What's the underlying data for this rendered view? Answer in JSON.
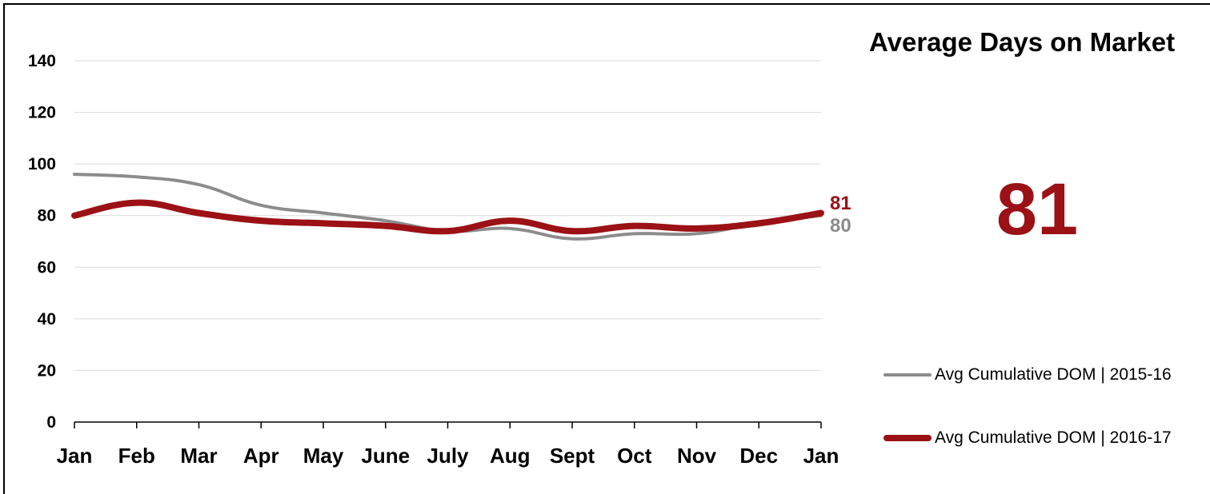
{
  "title": "Average Days on Market",
  "big_number": "81",
  "colors": {
    "series_2015_16": "#8c8c8c",
    "series_2016_17": "#9b1115",
    "grid": "#d9d9d9",
    "axis": "#000000"
  },
  "legend": [
    {
      "label": "Avg Cumulative DOM | 2015-16",
      "color": "#8c8c8c"
    },
    {
      "label": "Avg Cumulative DOM | 2016-17",
      "color": "#9b1115"
    }
  ],
  "chart_data": {
    "type": "line",
    "title": "Average Days on Market",
    "categories": [
      "Jan",
      "Feb",
      "Mar",
      "Apr",
      "May",
      "June",
      "July",
      "Aug",
      "Sept",
      "Oct",
      "Nov",
      "Dec",
      "Jan"
    ],
    "ylim": [
      0,
      140
    ],
    "yticks": [
      0,
      20,
      40,
      60,
      80,
      100,
      120,
      140
    ],
    "grid": true,
    "legend_position": "right",
    "series": [
      {
        "name": "Avg Cumulative DOM | 2015-16",
        "color": "#8c8c8c",
        "values": [
          96,
          95,
          92,
          84,
          81,
          78,
          74,
          75,
          71,
          73,
          73,
          77,
          80
        ],
        "end_label": "80"
      },
      {
        "name": "Avg Cumulative DOM | 2016-17",
        "color": "#9b1115",
        "values": [
          80,
          85,
          81,
          78,
          77,
          76,
          74,
          78,
          74,
          76,
          75,
          77,
          81
        ],
        "end_label": "81"
      }
    ]
  }
}
